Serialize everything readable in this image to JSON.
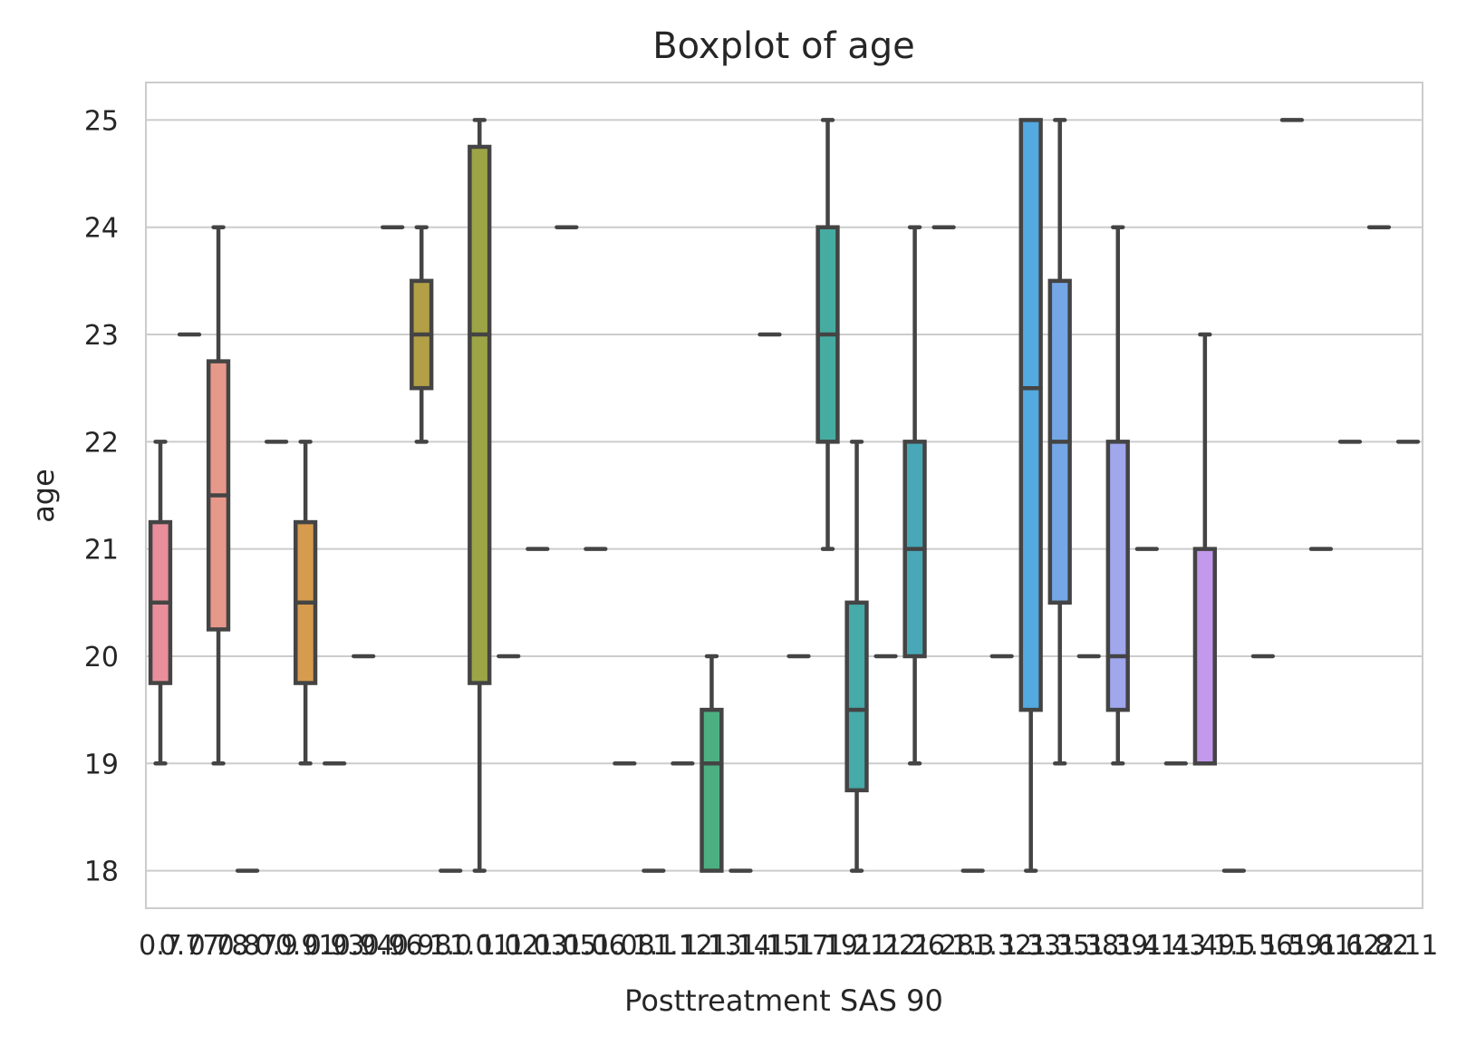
{
  "chart_data": {
    "type": "box",
    "title": "Boxplot of age",
    "xlabel": "Posttreatment SAS 90",
    "ylabel": "age",
    "ylim": [
      17.65,
      25.35
    ],
    "yticks": [
      18,
      19,
      20,
      21,
      22,
      23,
      24,
      25
    ],
    "grid": "horizontal",
    "categories": [
      "0.7",
      "0.77",
      "0.78",
      "0.87",
      "0.9",
      "0.91",
      "0.93",
      "0.94",
      "0.96",
      "0.98",
      "1.0",
      "1.01",
      "1.02",
      "1.03",
      "1.05",
      "1.06",
      "1.08",
      "1.1",
      "1.12",
      "1.13",
      "1.14",
      "1.15",
      "1.17",
      "1.19",
      "1.21",
      "1.22",
      "1.26",
      "1.28",
      "1.3",
      "1.32",
      "1.33",
      "1.35",
      "1.38",
      "1.39",
      "1.41",
      "1.43",
      "1.49",
      "1.5",
      "1.56",
      "1.59",
      "1.61",
      "1.62",
      "1.82",
      "2.11"
    ],
    "boxes": [
      {
        "whislo": 19,
        "q1": 19.75,
        "med": 20.5,
        "q3": 21.25,
        "whishi": 22,
        "color": "#e88f9b"
      },
      {
        "whislo": 23,
        "q1": 23,
        "med": 23,
        "q3": 23,
        "whishi": 23,
        "color": "#ea8f86"
      },
      {
        "whislo": 19,
        "q1": 20.25,
        "med": 21.5,
        "q3": 22.75,
        "whishi": 24,
        "color": "#e6988a"
      },
      {
        "whislo": 18,
        "q1": 18,
        "med": 18,
        "q3": 18,
        "whishi": 18,
        "color": "#e09a6f"
      },
      {
        "whislo": 22,
        "q1": 22,
        "med": 22,
        "q3": 22,
        "whishi": 22,
        "color": "#dba067"
      },
      {
        "whislo": 19,
        "q1": 19.75,
        "med": 20.5,
        "q3": 21.25,
        "whishi": 22,
        "color": "#d69b4d"
      },
      {
        "whislo": 19,
        "q1": 19,
        "med": 19,
        "q3": 19,
        "whishi": 19,
        "color": "#c9a04a"
      },
      {
        "whislo": 20,
        "q1": 20,
        "med": 20,
        "q3": 20,
        "whishi": 20,
        "color": "#bfa34a"
      },
      {
        "whislo": 24,
        "q1": 24,
        "med": 24,
        "q3": 24,
        "whishi": 24,
        "color": "#b8a64a"
      },
      {
        "whislo": 22,
        "q1": 22.5,
        "med": 23,
        "q3": 23.5,
        "whishi": 24,
        "color": "#b29f46"
      },
      {
        "whislo": 18,
        "q1": 18,
        "med": 18,
        "q3": 18,
        "whishi": 18,
        "color": "#a6a545"
      },
      {
        "whislo": 18,
        "q1": 19.75,
        "med": 23,
        "q3": 24.75,
        "whishi": 25,
        "color": "#9ca445"
      },
      {
        "whislo": 20,
        "q1": 20,
        "med": 20,
        "q3": 20,
        "whishi": 20,
        "color": "#90a845"
      },
      {
        "whislo": 21,
        "q1": 21,
        "med": 21,
        "q3": 21,
        "whishi": 21,
        "color": "#84ab47"
      },
      {
        "whislo": 24,
        "q1": 24,
        "med": 24,
        "q3": 24,
        "whishi": 24,
        "color": "#78ad4d"
      },
      {
        "whislo": 21,
        "q1": 21,
        "med": 21,
        "q3": 21,
        "whishi": 21,
        "color": "#6daf56"
      },
      {
        "whislo": 19,
        "q1": 19,
        "med": 19,
        "q3": 19,
        "whishi": 19,
        "color": "#62b060"
      },
      {
        "whislo": 18,
        "q1": 18,
        "med": 18,
        "q3": 18,
        "whishi": 18,
        "color": "#56b16a"
      },
      {
        "whislo": 19,
        "q1": 19,
        "med": 19,
        "q3": 19,
        "whishi": 19,
        "color": "#4fb175"
      },
      {
        "whislo": 18,
        "q1": 18,
        "med": 19,
        "q3": 19.5,
        "whishi": 20,
        "color": "#4caf82"
      },
      {
        "whislo": 18,
        "q1": 18,
        "med": 18,
        "q3": 18,
        "whishi": 18,
        "color": "#4aae8c"
      },
      {
        "whislo": 23,
        "q1": 23,
        "med": 23,
        "q3": 23,
        "whishi": 23,
        "color": "#48ad95"
      },
      {
        "whislo": 20,
        "q1": 20,
        "med": 20,
        "q3": 20,
        "whishi": 20,
        "color": "#47ac9e"
      },
      {
        "whislo": 21,
        "q1": 22,
        "med": 23,
        "q3": 24,
        "whishi": 25,
        "color": "#46aba0"
      },
      {
        "whislo": 18,
        "q1": 18.75,
        "med": 19.5,
        "q3": 20.5,
        "whishi": 22,
        "color": "#45aaa8"
      },
      {
        "whislo": 20,
        "q1": 20,
        "med": 20,
        "q3": 20,
        "whishi": 20,
        "color": "#45a9b0"
      },
      {
        "whislo": 19,
        "q1": 20,
        "med": 21,
        "q3": 22,
        "whishi": 24,
        "color": "#48a8b8"
      },
      {
        "whislo": 24,
        "q1": 24,
        "med": 24,
        "q3": 24,
        "whishi": 24,
        "color": "#4aa7c0"
      },
      {
        "whislo": 18,
        "q1": 18,
        "med": 18,
        "q3": 18,
        "whishi": 18,
        "color": "#4da6c8"
      },
      {
        "whislo": 20,
        "q1": 20,
        "med": 20,
        "q3": 20,
        "whishi": 20,
        "color": "#50a5d0"
      },
      {
        "whislo": 18,
        "q1": 19.5,
        "med": 22.5,
        "q3": 25,
        "whishi": 25,
        "color": "#53a9e0"
      },
      {
        "whislo": 19,
        "q1": 20.5,
        "med": 22,
        "q3": 23.5,
        "whishi": 25,
        "color": "#75a7e6"
      },
      {
        "whislo": 20,
        "q1": 20,
        "med": 20,
        "q3": 20,
        "whishi": 20,
        "color": "#8aa6e8"
      },
      {
        "whislo": 19,
        "q1": 19.5,
        "med": 20,
        "q3": 22,
        "whishi": 24,
        "color": "#a0a7ec"
      },
      {
        "whislo": 21,
        "q1": 21,
        "med": 21,
        "q3": 21,
        "whishi": 21,
        "color": "#a9a0ee"
      },
      {
        "whislo": 19,
        "q1": 19,
        "med": 19,
        "q3": 19,
        "whishi": 19,
        "color": "#b49df0"
      },
      {
        "whislo": 19,
        "q1": 19,
        "med": 19,
        "q3": 21,
        "whishi": 23,
        "color": "#c299ed"
      },
      {
        "whislo": 18,
        "q1": 18,
        "med": 18,
        "q3": 18,
        "whishi": 18,
        "color": "#cc96e6"
      },
      {
        "whislo": 20,
        "q1": 20,
        "med": 20,
        "q3": 20,
        "whishi": 20,
        "color": "#d494e0"
      },
      {
        "whislo": 25,
        "q1": 25,
        "med": 25,
        "q3": 25,
        "whishi": 25,
        "color": "#dc92d6"
      },
      {
        "whislo": 21,
        "q1": 21,
        "med": 21,
        "q3": 21,
        "whishi": 21,
        "color": "#e291cc"
      },
      {
        "whislo": 22,
        "q1": 22,
        "med": 22,
        "q3": 22,
        "whishi": 22,
        "color": "#e590c2"
      },
      {
        "whislo": 24,
        "q1": 24,
        "med": 24,
        "q3": 24,
        "whishi": 24,
        "color": "#e890b8"
      },
      {
        "whislo": 22,
        "q1": 22,
        "med": 22,
        "q3": 22,
        "whishi": 22,
        "color": "#ea90ae"
      }
    ]
  }
}
